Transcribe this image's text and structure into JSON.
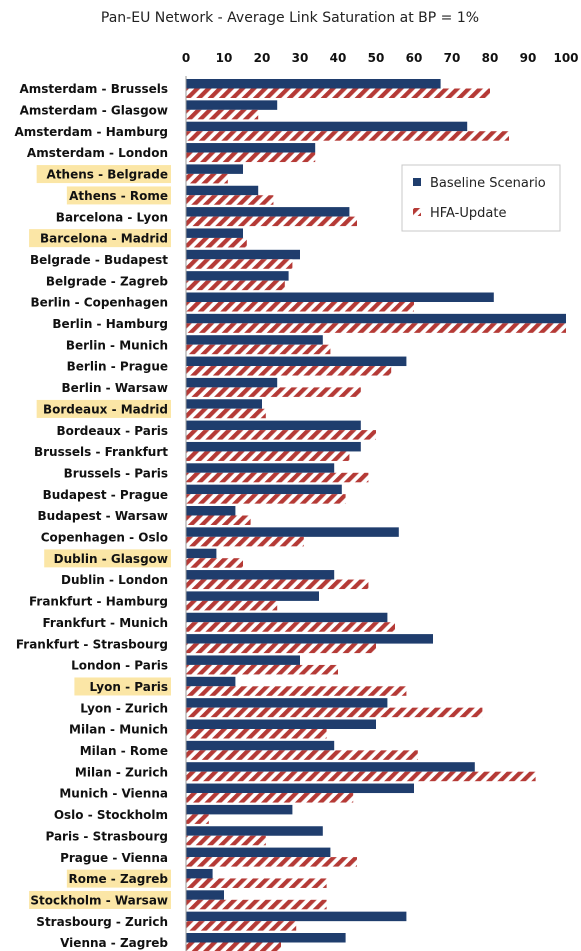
{
  "chart_data": {
    "type": "bar",
    "orientation": "horizontal",
    "title": "Pan-EU Network - Average Link Saturation at BP = 1%",
    "xlim": [
      0,
      100
    ],
    "xticks": [
      0,
      10,
      20,
      30,
      40,
      50,
      60,
      70,
      80,
      90,
      100
    ],
    "grid": false,
    "legend_position": "top-right",
    "categories": [
      "Amsterdam - Brussels",
      "Amsterdam - Glasgow",
      "Amsterdam - Hamburg",
      "Amsterdam - London",
      "Athens - Belgrade",
      "Athens - Rome",
      "Barcelona - Lyon",
      "Barcelona - Madrid",
      "Belgrade - Budapest",
      "Belgrade - Zagreb",
      "Berlin  - Copenhagen",
      "Berlin  - Hamburg",
      "Berlin  - Munich",
      "Berlin  - Prague",
      "Berlin  - Warsaw",
      "Bordeaux - Madrid",
      "Bordeaux - Paris",
      "Brussels  - Frankfurt",
      "Brussels  - Paris",
      "Budapest - Prague",
      "Budapest - Warsaw",
      "Copenhagen - Oslo",
      "Dublin - Glasgow",
      "Dublin - London",
      "Frankfurt - Hamburg",
      "Frankfurt - Munich",
      "Frankfurt - Strasbourg",
      "London - Paris",
      "Lyon - Paris",
      "Lyon - Zurich",
      "Milan - Munich",
      "Milan - Rome",
      "Milan - Zurich",
      "Munich - Vienna",
      "Oslo - Stockholm",
      "Paris - Strasbourg",
      "Prague - Vienna",
      "Rome - Zagreb",
      "Stockholm - Warsaw",
      "Strasbourg - Zurich",
      "Vienna - Zagreb"
    ],
    "highlighted_categories": [
      "Athens - Belgrade",
      "Athens - Rome",
      "Barcelona - Madrid",
      "Bordeaux - Madrid",
      "Dublin - Glasgow",
      "Lyon - Paris",
      "Rome - Zagreb",
      "Stockholm - Warsaw"
    ],
    "highlight_color": "#fbe6a6",
    "series": [
      {
        "name": "Baseline Scenario",
        "color": "#1f3d6d",
        "pattern": "solid",
        "values": [
          67,
          24,
          74,
          34,
          15,
          19,
          43,
          15,
          30,
          27,
          81,
          100,
          36,
          58,
          24,
          20,
          46,
          46,
          39,
          41,
          13,
          56,
          8,
          39,
          35,
          53,
          65,
          30,
          13,
          53,
          50,
          39,
          76,
          60,
          28,
          36,
          38,
          7,
          10,
          58,
          42
        ]
      },
      {
        "name": "HFA-Update",
        "color": "#b53a36",
        "pattern": "diagonal-stripes",
        "values": [
          80,
          19,
          85,
          34,
          11,
          23,
          45,
          16,
          28,
          26,
          60,
          100,
          38,
          54,
          46,
          21,
          50,
          43,
          48,
          42,
          17,
          31,
          15,
          48,
          24,
          55,
          50,
          40,
          58,
          78,
          37,
          61,
          92,
          44,
          6,
          21,
          45,
          37,
          37,
          29,
          25
        ]
      }
    ]
  }
}
